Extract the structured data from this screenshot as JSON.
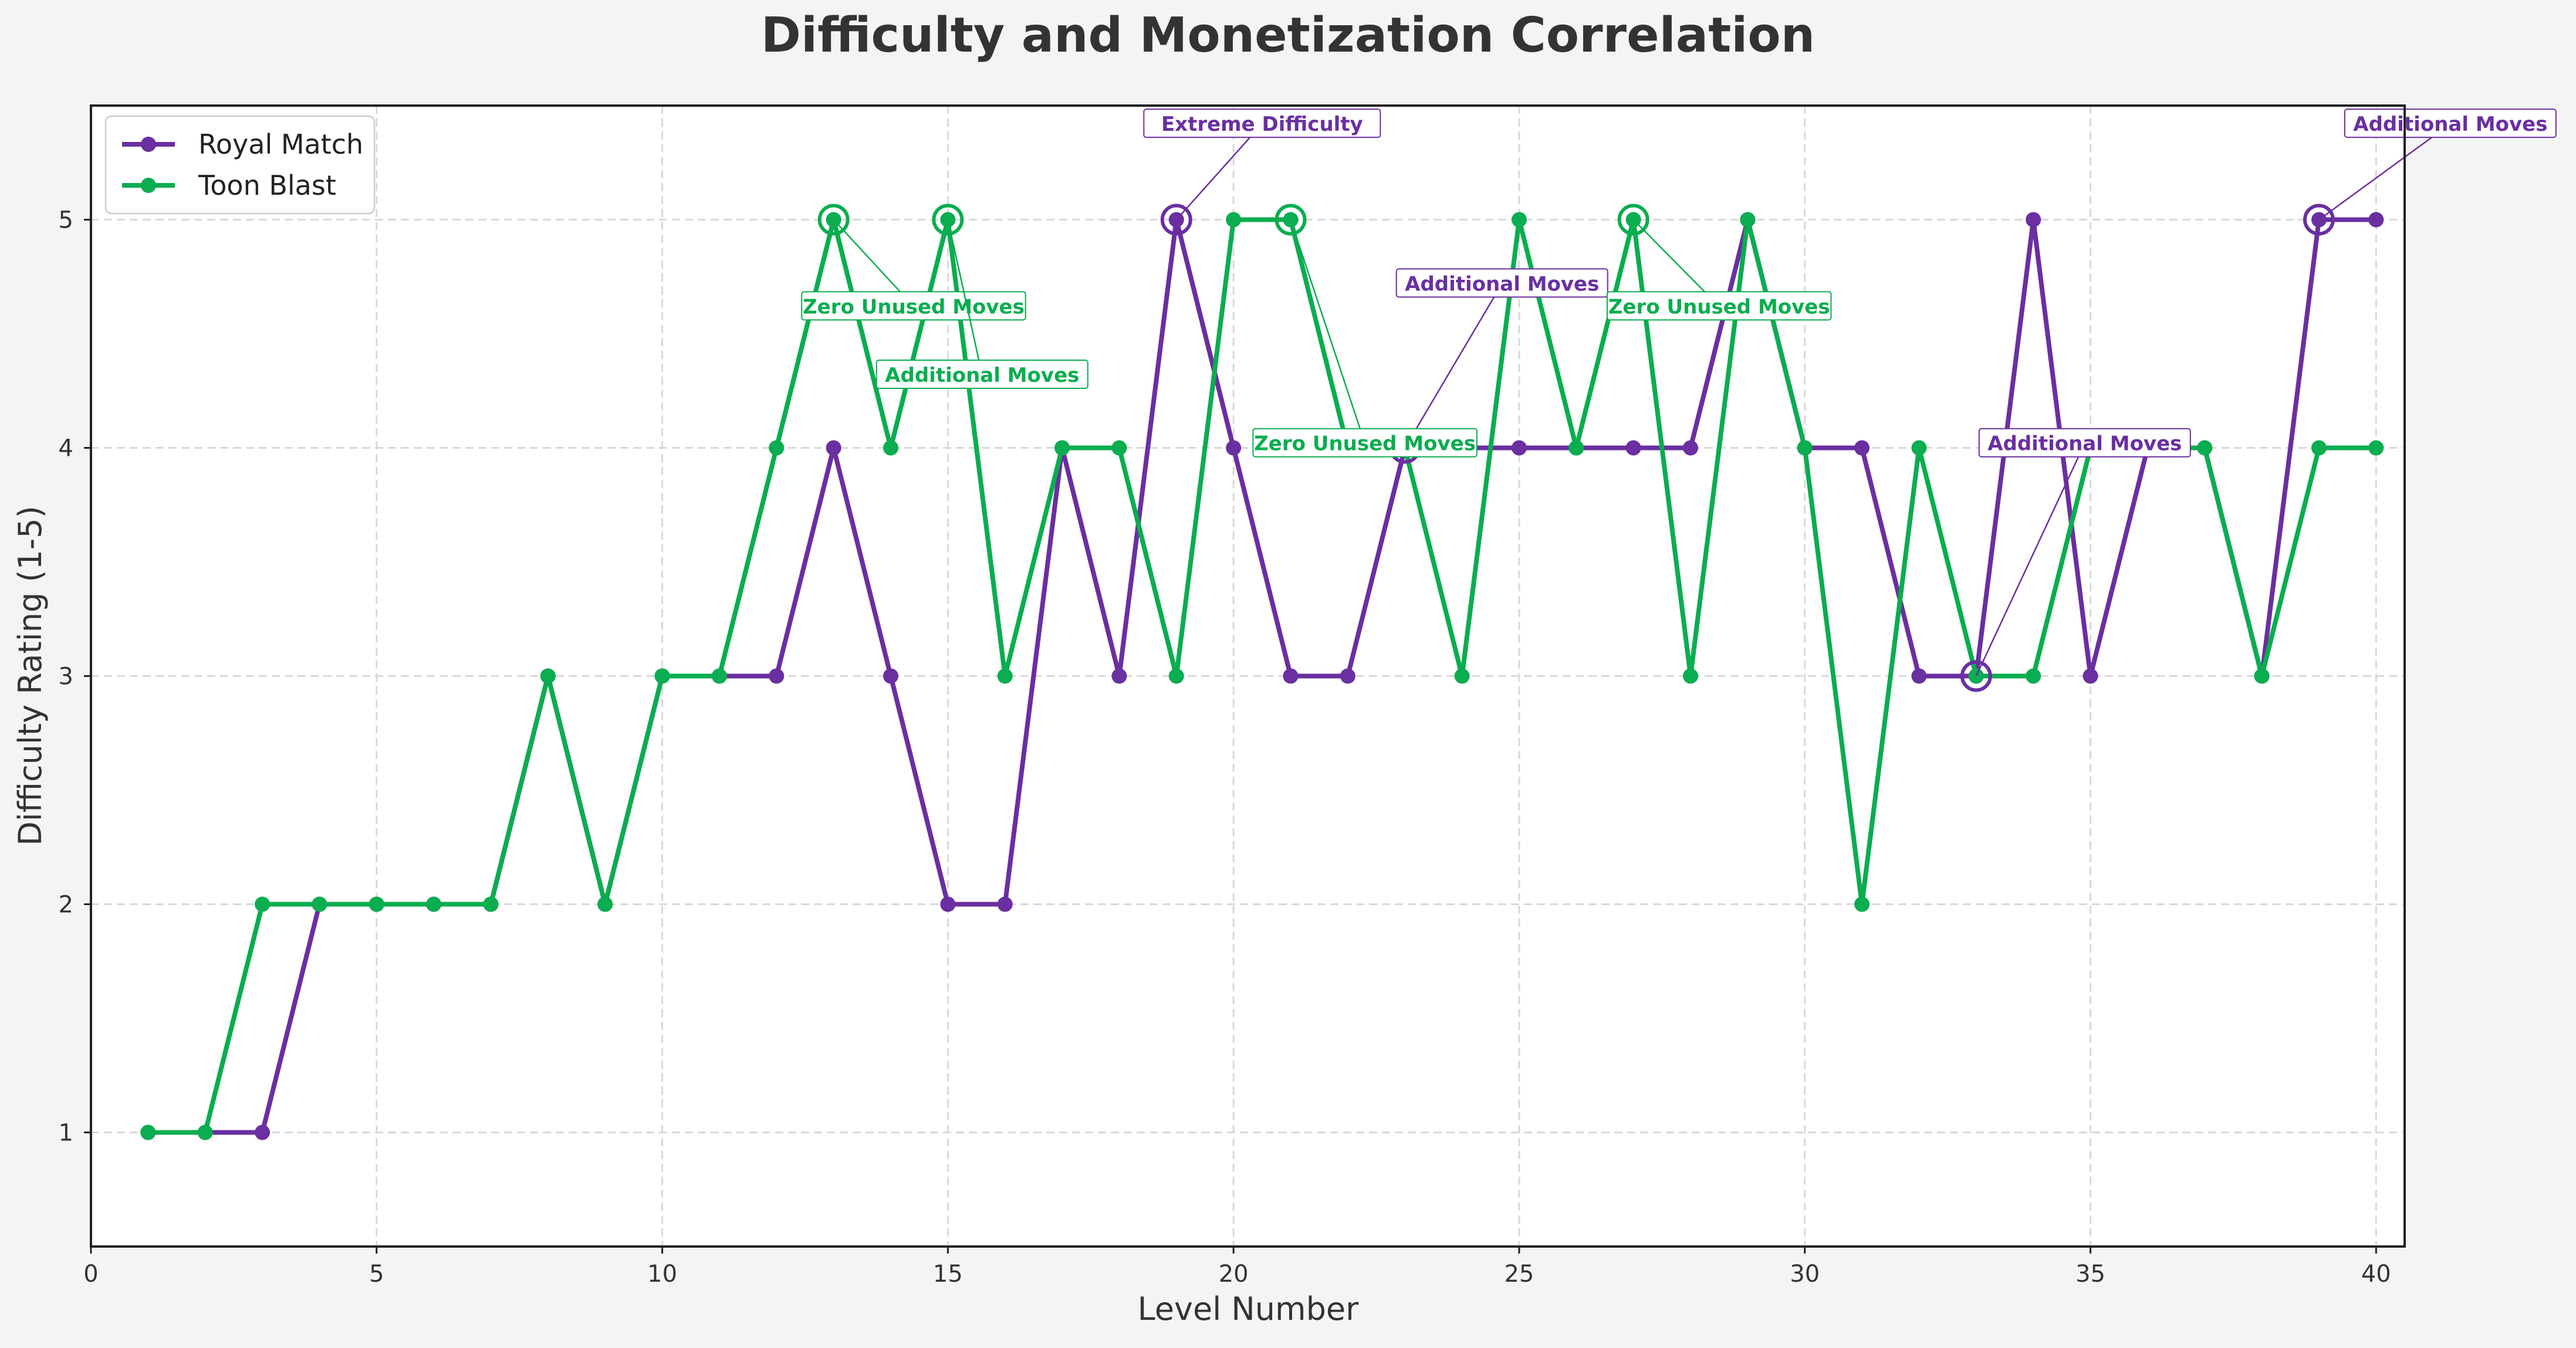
{
  "chart_data": {
    "type": "line",
    "title": "Difficulty and Monetization Correlation",
    "xlabel": "Level Number",
    "ylabel": "Difficulty Rating (1-5)",
    "xlim": [
      0,
      40.5
    ],
    "ylim": [
      0.5,
      5.5
    ],
    "xticks": [
      0,
      5,
      10,
      15,
      20,
      25,
      30,
      35,
      40
    ],
    "yticks": [
      1,
      2,
      3,
      4,
      5
    ],
    "grid": true,
    "legend_position": "top-left",
    "x": [
      1,
      2,
      3,
      4,
      5,
      6,
      7,
      8,
      9,
      10,
      11,
      12,
      13,
      14,
      15,
      16,
      17,
      18,
      19,
      20,
      21,
      22,
      23,
      24,
      25,
      26,
      27,
      28,
      29,
      30,
      31,
      32,
      33,
      34,
      35,
      36,
      37,
      38,
      39,
      40
    ],
    "series": [
      {
        "name": "Royal Match",
        "color": "#6a2fa0",
        "values": [
          1,
          1,
          1,
          2,
          2,
          2,
          2,
          3,
          2,
          3,
          3,
          3,
          4,
          3,
          2,
          2,
          4,
          3,
          5,
          4,
          3,
          3,
          4,
          4,
          4,
          4,
          4,
          4,
          5,
          4,
          4,
          3,
          3,
          5,
          3,
          4,
          4,
          3,
          5,
          5
        ]
      },
      {
        "name": "Toon Blast",
        "color": "#0aad4f",
        "values": [
          1,
          1,
          2,
          2,
          2,
          2,
          2,
          3,
          2,
          3,
          3,
          4,
          5,
          4,
          5,
          3,
          4,
          4,
          3,
          5,
          5,
          4,
          4,
          3,
          5,
          4,
          5,
          3,
          5,
          4,
          2,
          4,
          3,
          3,
          4,
          4,
          4,
          3,
          4,
          4
        ]
      }
    ],
    "annotations": [
      {
        "series": 0,
        "x": 19,
        "y": 5,
        "text": "Extreme Difficulty",
        "tx": 20.5,
        "ty": 5.42
      },
      {
        "series": 0,
        "x": 23,
        "y": 4,
        "text": "Additional Moves",
        "tx": 24.7,
        "ty": 4.72
      },
      {
        "series": 0,
        "x": 33,
        "y": 3,
        "text": "Additional Moves",
        "tx": 34.9,
        "ty": 4.02
      },
      {
        "series": 0,
        "x": 39,
        "y": 5,
        "text": "Additional Moves",
        "tx": 41.3,
        "ty": 5.42
      },
      {
        "series": 1,
        "x": 13,
        "y": 5,
        "text": "Zero Unused Moves",
        "tx": 14.4,
        "ty": 4.62
      },
      {
        "series": 1,
        "x": 15,
        "y": 5,
        "text": "Additional Moves",
        "tx": 15.6,
        "ty": 4.32
      },
      {
        "series": 1,
        "x": 21,
        "y": 5,
        "text": "Zero Unused Moves",
        "tx": 22.3,
        "ty": 4.02
      },
      {
        "series": 1,
        "x": 27,
        "y": 5,
        "text": "Zero Unused Moves",
        "tx": 28.5,
        "ty": 4.62
      }
    ]
  }
}
